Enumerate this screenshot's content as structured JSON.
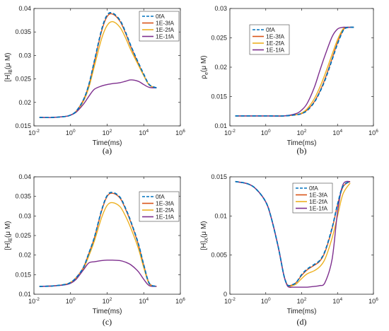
{
  "chart_data": [
    {
      "type": "line",
      "caption": "(a)",
      "xlabel": "Time(ms)",
      "ylabel_main": "[H]",
      "ylabel_sub": "B",
      "ylabel_tail": "(μ M)",
      "xscale": "log",
      "xlim": [
        0.01,
        1000000
      ],
      "ylim": [
        0.015,
        0.04
      ],
      "xticks": [
        {
          "v": 0.01,
          "b": "10",
          "e": "-2"
        },
        {
          "v": 1,
          "b": "10",
          "e": "0"
        },
        {
          "v": 100,
          "b": "10",
          "e": "2"
        },
        {
          "v": 10000,
          "b": "10",
          "e": "4"
        },
        {
          "v": 1000000,
          "b": "10",
          "e": "6"
        }
      ],
      "yticks": [
        "0.015",
        "0.02",
        "0.025",
        "0.03",
        "0.035",
        "0.04"
      ],
      "legend": "top-right",
      "series": [
        {
          "name": "0fA",
          "color": "#0072BD",
          "dash": true,
          "x": [
            0.02,
            0.1,
            0.5,
            1,
            2,
            5,
            10,
            20,
            50,
            100,
            200,
            500,
            1000,
            2000,
            5000,
            10000,
            20000,
            50000
          ],
          "y": [
            0.0168,
            0.0168,
            0.017,
            0.0173,
            0.0181,
            0.0205,
            0.0238,
            0.0288,
            0.0355,
            0.0386,
            0.039,
            0.0375,
            0.035,
            0.032,
            0.0285,
            0.026,
            0.0238,
            0.0231
          ]
        },
        {
          "name": "1E-3fA",
          "color": "#D95319",
          "dash": false,
          "x": [
            0.02,
            0.1,
            0.5,
            1,
            2,
            5,
            10,
            20,
            50,
            100,
            200,
            500,
            1000,
            2000,
            5000,
            10000,
            20000,
            50000
          ],
          "y": [
            0.0168,
            0.0168,
            0.017,
            0.0173,
            0.0181,
            0.0205,
            0.0237,
            0.0286,
            0.0352,
            0.0383,
            0.0388,
            0.0373,
            0.0348,
            0.0318,
            0.0283,
            0.0258,
            0.0237,
            0.0231
          ]
        },
        {
          "name": "1E-2fA",
          "color": "#EDB120",
          "dash": false,
          "x": [
            0.02,
            0.1,
            0.5,
            1,
            2,
            5,
            10,
            20,
            50,
            100,
            200,
            500,
            1000,
            2000,
            5000,
            10000,
            20000,
            50000
          ],
          "y": [
            0.0168,
            0.0168,
            0.017,
            0.0173,
            0.018,
            0.0202,
            0.0232,
            0.0277,
            0.0336,
            0.0364,
            0.0372,
            0.036,
            0.0338,
            0.0311,
            0.028,
            0.0257,
            0.0237,
            0.0231
          ]
        },
        {
          "name": "1E-1fA",
          "color": "#7E2F8E",
          "dash": false,
          "x": [
            0.02,
            0.1,
            0.5,
            1,
            2,
            5,
            10,
            20,
            50,
            100,
            200,
            500,
            1000,
            2000,
            5000,
            10000,
            20000,
            50000
          ],
          "y": [
            0.0168,
            0.0168,
            0.017,
            0.0173,
            0.0179,
            0.0196,
            0.0213,
            0.0228,
            0.0235,
            0.0238,
            0.024,
            0.0242,
            0.0245,
            0.0248,
            0.0245,
            0.0238,
            0.0232,
            0.0231
          ]
        }
      ]
    },
    {
      "type": "line",
      "caption": "(b)",
      "xlabel": "Time(ms)",
      "ylabel_main": "ρ",
      "ylabel_sub": "e",
      "ylabel_tail": "(μ M)",
      "xscale": "log",
      "xlim": [
        0.01,
        1000000
      ],
      "ylim": [
        0.01,
        0.03
      ],
      "xticks": [
        {
          "v": 0.01,
          "b": "10",
          "e": "-2"
        },
        {
          "v": 1,
          "b": "10",
          "e": "0"
        },
        {
          "v": 100,
          "b": "10",
          "e": "2"
        },
        {
          "v": 10000,
          "b": "10",
          "e": "4"
        },
        {
          "v": 1000000,
          "b": "10",
          "e": "6"
        }
      ],
      "yticks": [
        "0.01",
        "0.015",
        "0.02",
        "0.025",
        "0.03"
      ],
      "legend": "top-left",
      "series": [
        {
          "name": "0fA",
          "color": "#0072BD",
          "dash": true,
          "x": [
            0.02,
            1,
            10,
            50,
            100,
            200,
            500,
            1000,
            2000,
            5000,
            10000,
            20000,
            30000,
            50000,
            80000
          ],
          "y": [
            0.0117,
            0.0117,
            0.0117,
            0.0119,
            0.0121,
            0.0126,
            0.014,
            0.0157,
            0.0178,
            0.0213,
            0.024,
            0.0262,
            0.0267,
            0.0268,
            0.0268
          ]
        },
        {
          "name": "1E-3fA",
          "color": "#D95319",
          "dash": false,
          "x": [
            0.02,
            1,
            10,
            50,
            100,
            200,
            500,
            1000,
            2000,
            5000,
            10000,
            20000,
            30000,
            50000,
            80000
          ],
          "y": [
            0.0117,
            0.0117,
            0.0117,
            0.0119,
            0.0121,
            0.0127,
            0.0141,
            0.0158,
            0.018,
            0.0215,
            0.0242,
            0.0263,
            0.0267,
            0.0268,
            0.0268
          ]
        },
        {
          "name": "1E-2fA",
          "color": "#EDB120",
          "dash": false,
          "x": [
            0.02,
            1,
            10,
            50,
            100,
            200,
            500,
            1000,
            2000,
            5000,
            10000,
            20000,
            30000,
            50000,
            80000
          ],
          "y": [
            0.0117,
            0.0117,
            0.0117,
            0.0119,
            0.0122,
            0.0129,
            0.0146,
            0.0165,
            0.0188,
            0.0222,
            0.0247,
            0.0265,
            0.0268,
            0.0268,
            0.0268
          ]
        },
        {
          "name": "1E-1fA",
          "color": "#7E2F8E",
          "dash": false,
          "x": [
            0.02,
            1,
            10,
            50,
            100,
            200,
            500,
            1000,
            2000,
            5000,
            10000,
            20000,
            30000,
            50000,
            80000
          ],
          "y": [
            0.0117,
            0.0117,
            0.0117,
            0.0121,
            0.0127,
            0.0138,
            0.0165,
            0.0193,
            0.022,
            0.0252,
            0.0265,
            0.0268,
            0.0268,
            0.0268,
            0.0268
          ]
        }
      ]
    },
    {
      "type": "line",
      "caption": "(c)",
      "xlabel": "Time(ms)",
      "ylabel_main": "[H]",
      "ylabel_sub": "E",
      "ylabel_tail": "(μ M)",
      "xscale": "log",
      "xlim": [
        0.01,
        1000000
      ],
      "ylim": [
        0.01,
        0.04
      ],
      "xticks": [
        {
          "v": 0.01,
          "b": "10",
          "e": "-2"
        },
        {
          "v": 1,
          "b": "10",
          "e": "0"
        },
        {
          "v": 100,
          "b": "10",
          "e": "2"
        },
        {
          "v": 10000,
          "b": "10",
          "e": "4"
        },
        {
          "v": 1000000,
          "b": "10",
          "e": "6"
        }
      ],
      "yticks": [
        "0.01",
        "0.015",
        "0.02",
        "0.025",
        "0.03",
        "0.035",
        "0.04"
      ],
      "legend": "top-right",
      "series": [
        {
          "name": "0fA",
          "color": "#0072BD",
          "dash": true,
          "x": [
            0.02,
            0.1,
            0.5,
            1,
            2,
            5,
            10,
            20,
            50,
            100,
            200,
            500,
            1000,
            2000,
            5000,
            10000,
            20000,
            50000
          ],
          "y": [
            0.012,
            0.0121,
            0.0125,
            0.013,
            0.0142,
            0.0168,
            0.0205,
            0.0245,
            0.0315,
            0.0352,
            0.036,
            0.0348,
            0.032,
            0.0285,
            0.023,
            0.0175,
            0.0128,
            0.012
          ]
        },
        {
          "name": "1E-3fA",
          "color": "#D95319",
          "dash": false,
          "x": [
            0.02,
            0.1,
            0.5,
            1,
            2,
            5,
            10,
            20,
            50,
            100,
            200,
            500,
            1000,
            2000,
            5000,
            10000,
            20000,
            50000
          ],
          "y": [
            0.012,
            0.0121,
            0.0125,
            0.013,
            0.0142,
            0.0168,
            0.0204,
            0.0244,
            0.0313,
            0.035,
            0.0358,
            0.0346,
            0.0318,
            0.0283,
            0.0228,
            0.0174,
            0.0128,
            0.012
          ]
        },
        {
          "name": "1E-2fA",
          "color": "#EDB120",
          "dash": false,
          "x": [
            0.02,
            0.1,
            0.5,
            1,
            2,
            5,
            10,
            20,
            50,
            100,
            200,
            500,
            1000,
            2000,
            5000,
            10000,
            20000,
            50000
          ],
          "y": [
            0.012,
            0.0121,
            0.0125,
            0.013,
            0.0141,
            0.0165,
            0.0198,
            0.0236,
            0.0296,
            0.0327,
            0.0334,
            0.0324,
            0.03,
            0.0268,
            0.0218,
            0.0168,
            0.0126,
            0.012
          ]
        },
        {
          "name": "1E-1fA",
          "color": "#7E2F8E",
          "dash": false,
          "x": [
            0.02,
            0.1,
            0.5,
            1,
            2,
            5,
            10,
            20,
            50,
            100,
            200,
            500,
            1000,
            2000,
            5000,
            10000,
            20000,
            50000
          ],
          "y": [
            0.012,
            0.0121,
            0.0124,
            0.0128,
            0.0138,
            0.0162,
            0.018,
            0.0183,
            0.0186,
            0.0187,
            0.0187,
            0.0186,
            0.0182,
            0.0175,
            0.0158,
            0.0138,
            0.0122,
            0.012
          ]
        }
      ]
    },
    {
      "type": "line",
      "caption": "(d)",
      "xlabel": "Time(ms)",
      "ylabel_main": "[H]",
      "ylabel_sub": "X",
      "ylabel_tail": "(μ M)",
      "xscale": "log",
      "xlim": [
        0.01,
        1000000
      ],
      "ylim": [
        0,
        0.015
      ],
      "xticks": [
        {
          "v": 0.01,
          "b": "10",
          "e": "-2"
        },
        {
          "v": 1,
          "b": "10",
          "e": "0"
        },
        {
          "v": 100,
          "b": "10",
          "e": "2"
        },
        {
          "v": 10000,
          "b": "10",
          "e": "4"
        },
        {
          "v": 1000000,
          "b": "10",
          "e": "6"
        }
      ],
      "yticks": [
        "0",
        "0.005",
        "0.01",
        "0.015"
      ],
      "legend": "top-right",
      "series": [
        {
          "name": "0fA",
          "color": "#0072BD",
          "dash": true,
          "x": [
            0.02,
            0.1,
            0.3,
            1,
            2,
            5,
            10,
            15,
            20,
            30,
            50,
            100,
            200,
            500,
            1000,
            2000,
            5000,
            10000,
            20000,
            50000
          ],
          "y": [
            0.0144,
            0.0141,
            0.0134,
            0.0118,
            0.0098,
            0.006,
            0.0025,
            0.0013,
            0.0011,
            0.0012,
            0.0015,
            0.0025,
            0.0032,
            0.0038,
            0.0043,
            0.0055,
            0.0085,
            0.0115,
            0.0138,
            0.0144
          ]
        },
        {
          "name": "1E-3fA",
          "color": "#D95319",
          "dash": false,
          "x": [
            0.02,
            0.1,
            0.3,
            1,
            2,
            5,
            10,
            15,
            20,
            30,
            50,
            100,
            200,
            500,
            1000,
            2000,
            5000,
            10000,
            20000,
            50000
          ],
          "y": [
            0.0144,
            0.0141,
            0.0134,
            0.0118,
            0.0098,
            0.006,
            0.0025,
            0.0013,
            0.0011,
            0.0012,
            0.0015,
            0.0024,
            0.0031,
            0.0037,
            0.0042,
            0.0054,
            0.0084,
            0.0114,
            0.0137,
            0.0144
          ]
        },
        {
          "name": "1E-2fA",
          "color": "#EDB120",
          "dash": false,
          "x": [
            0.02,
            0.1,
            0.3,
            1,
            2,
            5,
            10,
            15,
            20,
            30,
            50,
            100,
            200,
            500,
            1000,
            2000,
            5000,
            10000,
            20000,
            50000
          ],
          "y": [
            0.0144,
            0.0141,
            0.0134,
            0.0118,
            0.0098,
            0.006,
            0.0025,
            0.0013,
            0.001,
            0.0011,
            0.0013,
            0.002,
            0.0026,
            0.003,
            0.0035,
            0.0045,
            0.0072,
            0.01,
            0.0128,
            0.0142
          ]
        },
        {
          "name": "1E-1fA",
          "color": "#7E2F8E",
          "dash": false,
          "x": [
            0.02,
            0.1,
            0.3,
            1,
            2,
            5,
            10,
            15,
            20,
            30,
            50,
            100,
            200,
            500,
            1000,
            2000,
            5000,
            10000,
            20000,
            50000
          ],
          "y": [
            0.0144,
            0.0141,
            0.0134,
            0.0118,
            0.0098,
            0.006,
            0.0025,
            0.0012,
            0.0009,
            0.0009,
            0.0009,
            0.0009,
            0.0009,
            0.001,
            0.0011,
            0.0015,
            0.0045,
            0.0105,
            0.014,
            0.0144
          ]
        }
      ]
    }
  ]
}
